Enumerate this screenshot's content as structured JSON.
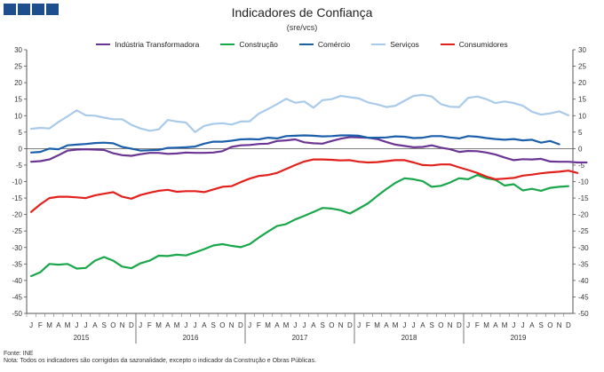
{
  "header": {
    "title": "Indicadores de Confiança",
    "subtitle": "(sre/vcs)"
  },
  "footer": {
    "source": "Fonte: INE",
    "note": "Nota: Todos os indicadores são corrigidos da sazonalidade, excepto o indicador da Construção e Obras Públicas."
  },
  "chart_data": {
    "type": "line",
    "title": "Indicadores de Confiança",
    "subtitle": "(sre/vcs)",
    "xlabel": "",
    "ylabel": "",
    "ylim": [
      -50,
      30
    ],
    "yticks": [
      -50,
      -45,
      -40,
      -35,
      -30,
      -25,
      -20,
      -15,
      -10,
      -5,
      0,
      5,
      10,
      15,
      20,
      25,
      30
    ],
    "grid": false,
    "legend_position": "top",
    "month_labels": [
      "J",
      "F",
      "M",
      "A",
      "M",
      "J",
      "J",
      "A",
      "S",
      "O",
      "N",
      "D"
    ],
    "years": [
      "2015",
      "2016",
      "2017",
      "2018",
      "2019"
    ],
    "series": [
      {
        "name": "Indústria Transformadora",
        "color": "#6b3594",
        "values": [
          -4,
          -3.8,
          -3.3,
          -2,
          -0.6,
          -0.3,
          -0.2,
          -0.3,
          -0.4,
          -1.4,
          -2,
          -2.2,
          -1.7,
          -1.3,
          -1.3,
          -1.6,
          -1.5,
          -1.2,
          -1.3,
          -1.3,
          -1.2,
          -0.8,
          0.5,
          1,
          1.1,
          1.4,
          1.5,
          2.3,
          2.5,
          2.8,
          1.9,
          1.6,
          1.5,
          2.3,
          3,
          3.5,
          3.4,
          3.3,
          2.9,
          2,
          1.2,
          0.8,
          0.4,
          0.5,
          1,
          0.3,
          -0.2,
          -1,
          -0.7,
          -0.8,
          -1.2,
          -1.8,
          -2.7,
          -3.5,
          -3.2,
          -3.3,
          -3.1,
          -3.9,
          -4,
          -4,
          -4.2,
          -4.2
        ]
      },
      {
        "name": "Construção",
        "color": "#1aa64a",
        "values": [
          -38.7,
          -37.5,
          -35,
          -35.2,
          -35,
          -36.4,
          -36.2,
          -34,
          -32.9,
          -34,
          -35.8,
          -36.3,
          -34.8,
          -34,
          -32.5,
          -32.6,
          -32.2,
          -32.4,
          -31.5,
          -30.5,
          -29.4,
          -29,
          -29.5,
          -29.9,
          -29,
          -27,
          -25.2,
          -23.5,
          -22.9,
          -21.5,
          -20.4,
          -19.2,
          -18,
          -18.2,
          -18.7,
          -19.7,
          -18.2,
          -16.6,
          -14.4,
          -12.3,
          -10.4,
          -9,
          -9.3,
          -9.9,
          -11.6,
          -11.3,
          -10.3,
          -9,
          -9.3,
          -8,
          -9,
          -9.5,
          -11.2,
          -10.8,
          -12.7,
          -12.2,
          -12.8,
          -11.9,
          -11.6,
          -11.4
        ]
      },
      {
        "name": "Comércio",
        "color": "#1b5faa",
        "values": [
          -1.2,
          -1,
          0,
          -0.2,
          1,
          1.2,
          1.4,
          1.7,
          1.8,
          1.6,
          0.5,
          0,
          -0.6,
          -0.5,
          -0.4,
          0.2,
          0.3,
          0.4,
          0.6,
          1.5,
          2.1,
          2.1,
          2.4,
          2.8,
          2.9,
          2.8,
          3.3,
          3.1,
          3.8,
          3.9,
          4,
          3.9,
          3.7,
          3.8,
          4,
          4,
          3.9,
          3.3,
          3.3,
          3.4,
          3.7,
          3.6,
          3.2,
          3.3,
          3.8,
          3.8,
          3.4,
          3.1,
          3.8,
          3.6,
          3.2,
          2.9,
          2.7,
          2.9,
          2.5,
          2.7,
          1.8,
          2.3,
          1.3
        ]
      },
      {
        "name": "Serviços",
        "color": "#a9cbe9",
        "values": [
          6,
          6.3,
          6.1,
          8.1,
          9.8,
          11.6,
          10.1,
          10,
          9.4,
          8.9,
          8.9,
          7.2,
          6.1,
          5.4,
          5.8,
          8.7,
          8.2,
          7.9,
          5,
          6.9,
          7.5,
          7.7,
          7.3,
          8.2,
          8.3,
          10.6,
          12,
          13.5,
          15.1,
          13.9,
          14.3,
          12.4,
          14.7,
          15,
          16,
          15.6,
          15.2,
          14,
          13.4,
          12.6,
          13,
          14.5,
          16,
          16.3,
          15.8,
          13.5,
          12.7,
          12.6,
          15.4,
          15.8,
          15,
          13.8,
          14.3,
          13.8,
          13,
          11.2,
          10.3,
          10.7,
          11.3,
          10.1
        ]
      },
      {
        "name": "Consumidores",
        "color": "#e2211c",
        "values": [
          -19.2,
          -16.9,
          -15,
          -14.6,
          -14.6,
          -14.8,
          -15,
          -14.2,
          -13.7,
          -13.2,
          -14.6,
          -15.2,
          -14.1,
          -13.4,
          -12.8,
          -12.5,
          -13.1,
          -12.9,
          -12.9,
          -13.2,
          -12.4,
          -11.6,
          -11.4,
          -10.2,
          -9.1,
          -8.3,
          -8,
          -7.4,
          -6.2,
          -5,
          -3.9,
          -3.3,
          -3.3,
          -3.4,
          -3.6,
          -3.5,
          -4,
          -4.2,
          -4.1,
          -3.8,
          -3.5,
          -3.5,
          -4.2,
          -5,
          -5.1,
          -4.8,
          -4.8,
          -5.7,
          -6.5,
          -7.4,
          -8.5,
          -9.3,
          -9.1,
          -8.9,
          -8.2,
          -7.9,
          -7.5,
          -7.2,
          -7,
          -6.7,
          -7.4
        ]
      }
    ]
  }
}
